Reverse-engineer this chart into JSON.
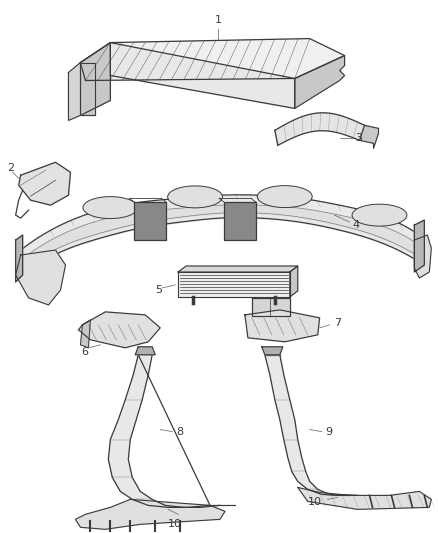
{
  "background_color": "#ffffff",
  "line_color": "#3a3a3a",
  "shade_color": "#c8c8c8",
  "light_color": "#f0f0f0",
  "label_color": "#222222",
  "callout_color": "#777777",
  "fig_width": 4.38,
  "fig_height": 5.33,
  "dpi": 100
}
